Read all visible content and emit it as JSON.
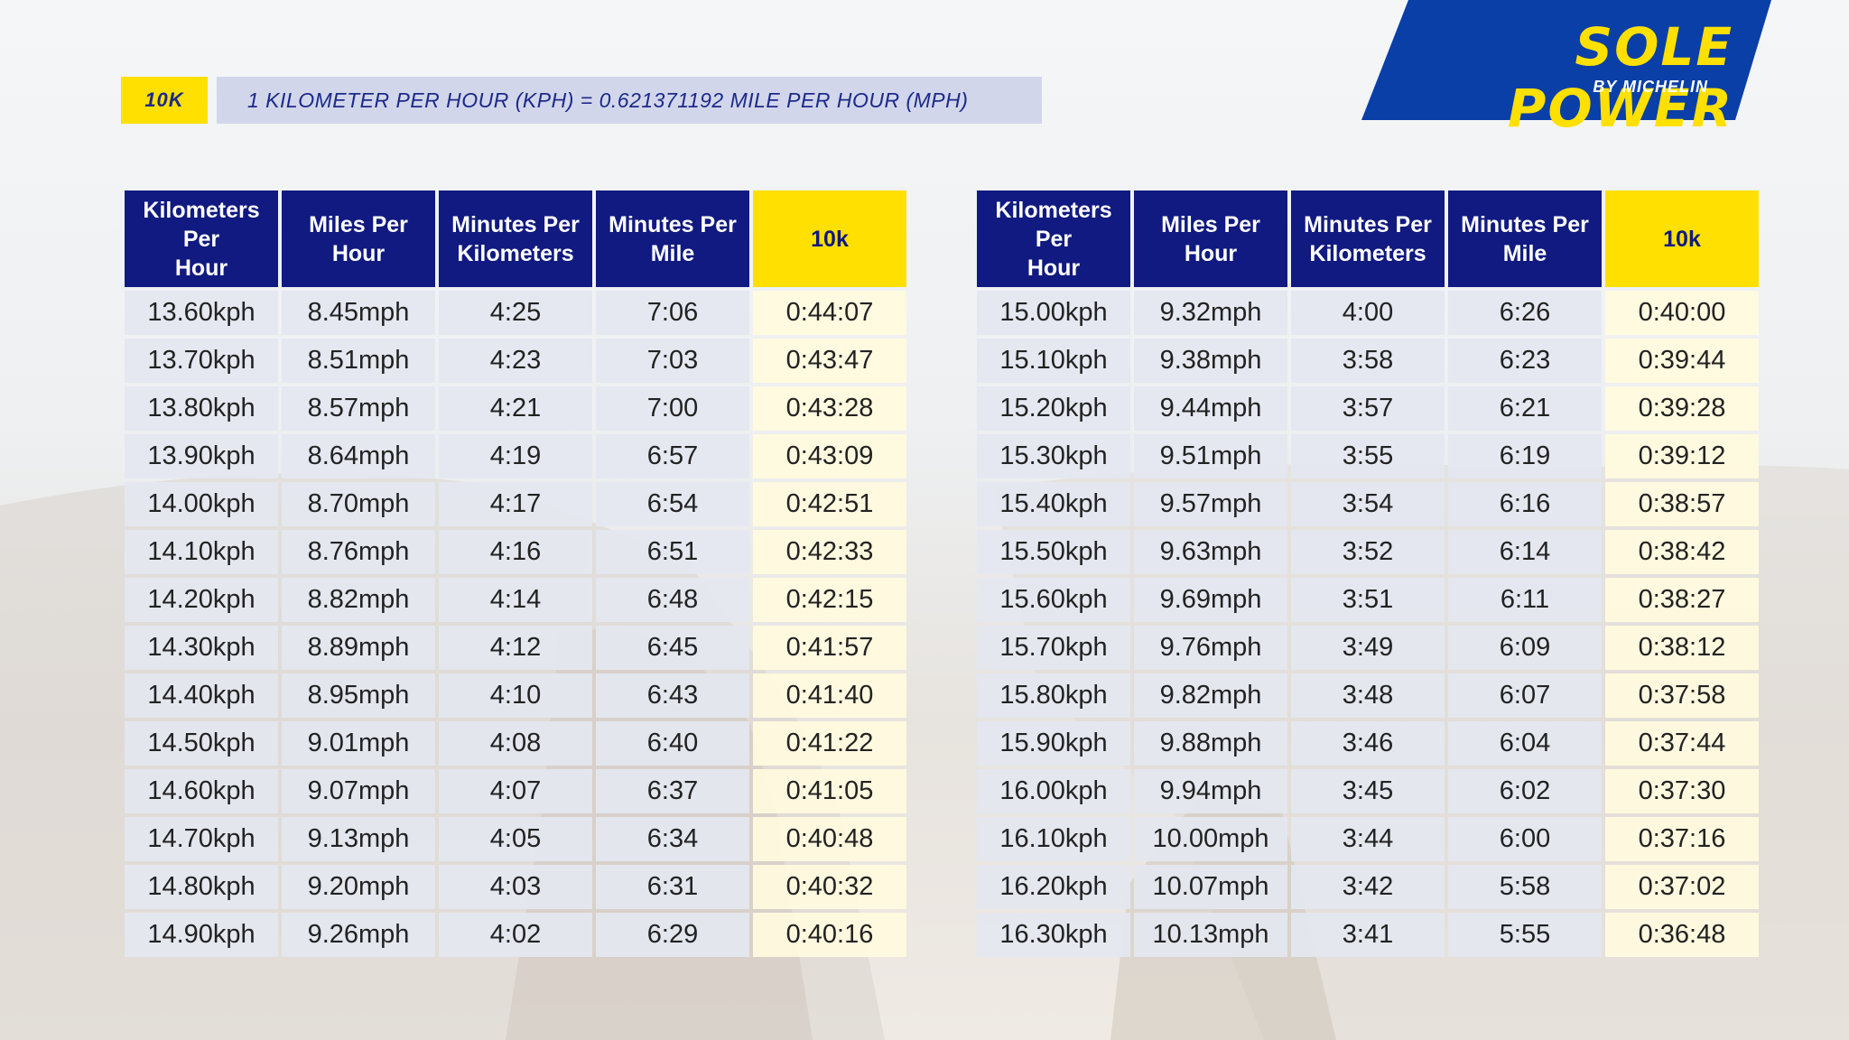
{
  "header": {
    "race_badge": "10K",
    "conversion_note": "1 KILOMETER PER HOUR (KPH) = 0.621371192 MILE PER HOUR (MPH)"
  },
  "logo": {
    "title": "SOLE POWER",
    "subtitle": "BY MICHELIN",
    "colors": {
      "background": "#0a3fa8",
      "text": "#ffe000"
    }
  },
  "colors": {
    "header_bg": "#101a80",
    "highlight": "#ffe000",
    "row_bg": "#e4e7f0",
    "highlight_row_bg": "#fffade"
  },
  "tables": [
    {
      "columns": [
        "Kilometers Per Hour",
        "Miles Per Hour",
        "Minutes Per Kilometers",
        "Minutes Per Mile",
        "10k"
      ],
      "rows": [
        [
          "13.60kph",
          "8.45mph",
          "4:25",
          "7:06",
          "0:44:07"
        ],
        [
          "13.70kph",
          "8.51mph",
          "4:23",
          "7:03",
          "0:43:47"
        ],
        [
          "13.80kph",
          "8.57mph",
          "4:21",
          "7:00",
          "0:43:28"
        ],
        [
          "13.90kph",
          "8.64mph",
          "4:19",
          "6:57",
          "0:43:09"
        ],
        [
          "14.00kph",
          "8.70mph",
          "4:17",
          "6:54",
          "0:42:51"
        ],
        [
          "14.10kph",
          "8.76mph",
          "4:16",
          "6:51",
          "0:42:33"
        ],
        [
          "14.20kph",
          "8.82mph",
          "4:14",
          "6:48",
          "0:42:15"
        ],
        [
          "14.30kph",
          "8.89mph",
          "4:12",
          "6:45",
          "0:41:57"
        ],
        [
          "14.40kph",
          "8.95mph",
          "4:10",
          "6:43",
          "0:41:40"
        ],
        [
          "14.50kph",
          "9.01mph",
          "4:08",
          "6:40",
          "0:41:22"
        ],
        [
          "14.60kph",
          "9.07mph",
          "4:07",
          "6:37",
          "0:41:05"
        ],
        [
          "14.70kph",
          "9.13mph",
          "4:05",
          "6:34",
          "0:40:48"
        ],
        [
          "14.80kph",
          "9.20mph",
          "4:03",
          "6:31",
          "0:40:32"
        ],
        [
          "14.90kph",
          "9.26mph",
          "4:02",
          "6:29",
          "0:40:16"
        ]
      ]
    },
    {
      "columns": [
        "Kilometers Per Hour",
        "Miles Per Hour",
        "Minutes Per Kilometers",
        "Minutes Per Mile",
        "10k"
      ],
      "rows": [
        [
          "15.00kph",
          "9.32mph",
          "4:00",
          "6:26",
          "0:40:00"
        ],
        [
          "15.10kph",
          "9.38mph",
          "3:58",
          "6:23",
          "0:39:44"
        ],
        [
          "15.20kph",
          "9.44mph",
          "3:57",
          "6:21",
          "0:39:28"
        ],
        [
          "15.30kph",
          "9.51mph",
          "3:55",
          "6:19",
          "0:39:12"
        ],
        [
          "15.40kph",
          "9.57mph",
          "3:54",
          "6:16",
          "0:38:57"
        ],
        [
          "15.50kph",
          "9.63mph",
          "3:52",
          "6:14",
          "0:38:42"
        ],
        [
          "15.60kph",
          "9.69mph",
          "3:51",
          "6:11",
          "0:38:27"
        ],
        [
          "15.70kph",
          "9.76mph",
          "3:49",
          "6:09",
          "0:38:12"
        ],
        [
          "15.80kph",
          "9.82mph",
          "3:48",
          "6:07",
          "0:37:58"
        ],
        [
          "15.90kph",
          "9.88mph",
          "3:46",
          "6:04",
          "0:37:44"
        ],
        [
          "16.00kph",
          "9.94mph",
          "3:45",
          "6:02",
          "0:37:30"
        ],
        [
          "16.10kph",
          "10.00mph",
          "3:44",
          "6:00",
          "0:37:16"
        ],
        [
          "16.20kph",
          "10.07mph",
          "3:42",
          "5:58",
          "0:37:02"
        ],
        [
          "16.30kph",
          "10.13mph",
          "3:41",
          "5:55",
          "0:36:48"
        ]
      ]
    }
  ]
}
